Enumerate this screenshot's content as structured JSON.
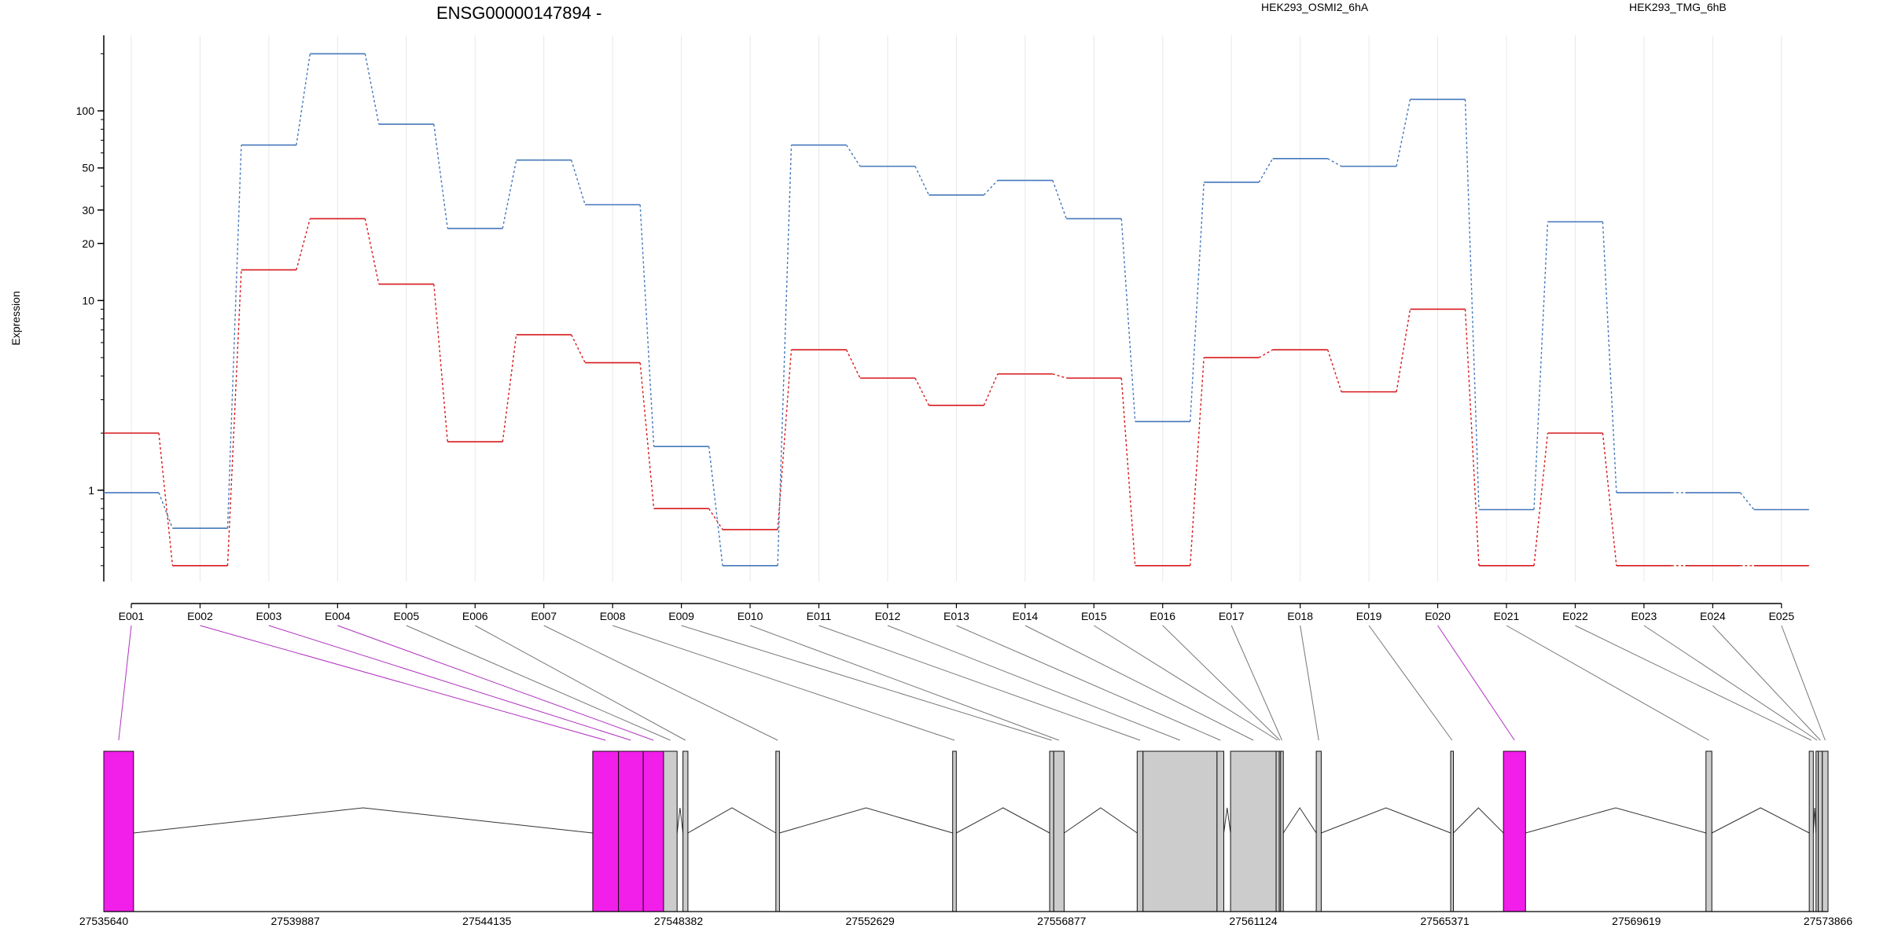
{
  "chart_data": {
    "type": "line",
    "title": "ENSG00000147894 -",
    "ylabel": "Expression",
    "y_scale": "log",
    "ylim": [
      0.33,
      250
    ],
    "y_ticks": [
      {
        "value": 1,
        "label": "1"
      },
      {
        "value": 10,
        "label": "10"
      },
      {
        "value": 20,
        "label": "20"
      },
      {
        "value": 30,
        "label": "30"
      },
      {
        "value": 50,
        "label": "50"
      },
      {
        "value": 100,
        "label": "100"
      }
    ],
    "grid": true,
    "legend_placement": "top",
    "categories": [
      "E001",
      "E002",
      "E003",
      "E004",
      "E005",
      "E006",
      "E007",
      "E008",
      "E009",
      "E010",
      "E011",
      "E012",
      "E013",
      "E014",
      "E015",
      "E016",
      "E017",
      "E018",
      "E019",
      "E020",
      "E021",
      "E022",
      "E023",
      "E024",
      "E025"
    ],
    "series": [
      {
        "name": "HEK293_OSMI2_6hA",
        "color": "#d7191c",
        "values": [
          2.0,
          0.4,
          14.5,
          27,
          12.2,
          1.8,
          6.6,
          4.7,
          0.8,
          0.62,
          5.5,
          3.9,
          2.8,
          4.1,
          3.9,
          0.4,
          5.0,
          5.5,
          3.3,
          9.0,
          0.4,
          2.0,
          0.4,
          0.4,
          0.4
        ]
      },
      {
        "name": "HEK293_TMG_6hB",
        "color": "#4477bb",
        "values": [
          0.97,
          0.63,
          66,
          200,
          85,
          24,
          55,
          32,
          1.7,
          0.4,
          66,
          51,
          36,
          43,
          27,
          2.3,
          42,
          56,
          51,
          115,
          0.79,
          26,
          0.97,
          0.97,
          0.79
        ]
      }
    ],
    "gene_model": {
      "coordinate_ticks": [
        "27535640",
        "27539887",
        "27544135",
        "27548382",
        "27552629",
        "27556877",
        "27561124",
        "27565371",
        "27569619",
        "27573866"
      ],
      "axis_range": [
        27535640,
        27573866
      ],
      "highlight_color": "#f21ee9",
      "exon_color": "#cccccc",
      "exons": [
        {
          "id": "E001",
          "start": 27535640,
          "end": 27536300,
          "highlight": true
        },
        {
          "id": "E002",
          "start": 27546480,
          "end": 27547050,
          "highlight": true
        },
        {
          "id": "E003",
          "start": 27547050,
          "end": 27547600,
          "highlight": true
        },
        {
          "id": "E004",
          "start": 27547600,
          "end": 27548050,
          "highlight": true
        },
        {
          "id": "E005",
          "start": 27548050,
          "end": 27548350,
          "highlight": false
        },
        {
          "id": "E006",
          "start": 27548480,
          "end": 27548590,
          "highlight": false
        },
        {
          "id": "E007",
          "start": 27550540,
          "end": 27550620,
          "highlight": false
        },
        {
          "id": "E008",
          "start": 27554460,
          "end": 27554540,
          "highlight": false
        },
        {
          "id": "E009",
          "start": 27556610,
          "end": 27556700,
          "highlight": false
        },
        {
          "id": "E010",
          "start": 27556700,
          "end": 27556930,
          "highlight": false
        },
        {
          "id": "E011",
          "start": 27558550,
          "end": 27558680,
          "highlight": false
        },
        {
          "id": "E012",
          "start": 27558680,
          "end": 27560320,
          "highlight": false
        },
        {
          "id": "E013",
          "start": 27560320,
          "end": 27560470,
          "highlight": false
        },
        {
          "id": "E014",
          "start": 27560620,
          "end": 27561630,
          "highlight": false
        },
        {
          "id": "E015",
          "start": 27561630,
          "end": 27561700,
          "highlight": false
        },
        {
          "id": "E016",
          "start": 27561700,
          "end": 27561730,
          "highlight": false
        },
        {
          "id": "E017",
          "start": 27561730,
          "end": 27561790,
          "highlight": false
        },
        {
          "id": "E018",
          "start": 27562520,
          "end": 27562630,
          "highlight": false
        },
        {
          "id": "E019",
          "start": 27565500,
          "end": 27565560,
          "highlight": false
        },
        {
          "id": "E020",
          "start": 27566670,
          "end": 27567160,
          "highlight": true
        },
        {
          "id": "E021",
          "start": 27571160,
          "end": 27571290,
          "highlight": false
        },
        {
          "id": "E022",
          "start": 27573450,
          "end": 27573540,
          "highlight": false
        },
        {
          "id": "E023",
          "start": 27573600,
          "end": 27573650,
          "highlight": false
        },
        {
          "id": "E024",
          "start": 27573650,
          "end": 27573740,
          "highlight": false
        },
        {
          "id": "E025",
          "start": 27573740,
          "end": 27573866,
          "highlight": false
        }
      ]
    }
  }
}
